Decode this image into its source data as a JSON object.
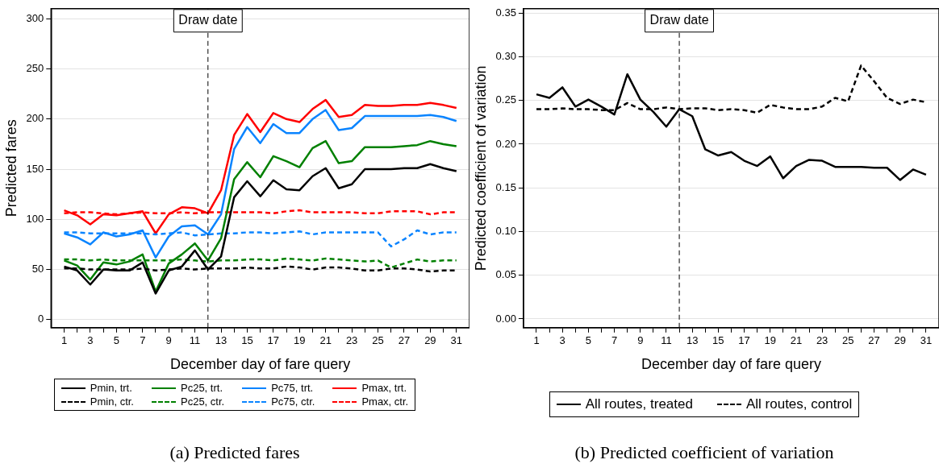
{
  "chart_data": [
    {
      "type": "line",
      "title": "(a) Predicted fares",
      "xlabel": "December day of fare query",
      "ylabel": "Predicted fares",
      "x": [
        1,
        2,
        3,
        4,
        5,
        6,
        7,
        8,
        9,
        10,
        11,
        12,
        13,
        14,
        15,
        16,
        17,
        18,
        19,
        20,
        21,
        22,
        23,
        24,
        25,
        26,
        27,
        28,
        29,
        30,
        31
      ],
      "xlim": [
        0,
        32
      ],
      "xticks": [
        1,
        {
          "value": 2,
          "label": null
        },
        3,
        {
          "value": 4,
          "label": null
        },
        5,
        {
          "value": 6,
          "label": null
        },
        7,
        {
          "value": 8,
          "label": null
        },
        9,
        {
          "value": 10,
          "label": null
        },
        11,
        {
          "value": 12,
          "label": null
        },
        13,
        {
          "value": 14,
          "label": null
        },
        15,
        {
          "value": 16,
          "label": null
        },
        17,
        {
          "value": 18,
          "label": null
        },
        19,
        {
          "value": 20,
          "label": null
        },
        21,
        {
          "value": 22,
          "label": null
        },
        23,
        {
          "value": 24,
          "label": null
        },
        25,
        {
          "value": 26,
          "label": null
        },
        27,
        {
          "value": 28,
          "label": null
        },
        29,
        {
          "value": 30,
          "label": null
        },
        31
      ],
      "ylim": [
        -8,
        310
      ],
      "yticks": [
        0,
        50,
        100,
        150,
        200,
        250,
        300
      ],
      "grid": "y",
      "legend": "bottom",
      "marker": "none",
      "ref_lines": [
        {
          "axis": "x",
          "value": 12,
          "label": "Draw date",
          "color": "#000000",
          "line_style": "dashed"
        }
      ],
      "series": [
        {
          "name": "Pmin, trt.",
          "color": "#000000",
          "line_style": "solid",
          "values": [
            53,
            49,
            35,
            50,
            49,
            49,
            57,
            26,
            49,
            53,
            69,
            50,
            63,
            122,
            138,
            123,
            139,
            130,
            129,
            143,
            151,
            131,
            135,
            150,
            150,
            150,
            151,
            151,
            155,
            151,
            148
          ]
        },
        {
          "name": "Pmin, ctr.",
          "color": "#000000",
          "line_style": "dashed",
          "values": [
            51,
            51,
            50,
            50,
            50,
            50,
            51,
            49,
            50,
            51,
            50,
            51,
            51,
            51,
            52,
            51,
            51,
            53,
            52,
            50,
            52,
            52,
            51,
            49,
            49,
            51,
            51,
            50,
            48,
            49,
            49
          ]
        },
        {
          "name": "Pc25, trt.",
          "color": "#008000",
          "line_style": "solid",
          "values": [
            59,
            54,
            40,
            57,
            55,
            58,
            65,
            28,
            56,
            65,
            76,
            59,
            81,
            140,
            157,
            142,
            163,
            158,
            152,
            171,
            178,
            156,
            158,
            172,
            172,
            172,
            173,
            174,
            178,
            175,
            173
          ]
        },
        {
          "name": "Pc25, ctr.",
          "color": "#008000",
          "line_style": "dashed",
          "values": [
            60,
            60,
            59,
            60,
            59,
            59,
            59,
            59,
            59,
            60,
            59,
            58,
            59,
            59,
            60,
            60,
            59,
            61,
            60,
            59,
            61,
            60,
            59,
            58,
            59,
            52,
            56,
            60,
            58,
            59,
            59
          ]
        },
        {
          "name": "Pc75, trt.",
          "color": "#0a84ff",
          "line_style": "solid",
          "values": [
            86,
            82,
            75,
            87,
            83,
            85,
            89,
            62,
            83,
            93,
            94,
            85,
            105,
            170,
            192,
            176,
            195,
            186,
            186,
            200,
            209,
            189,
            191,
            203,
            203,
            203,
            203,
            203,
            204,
            202,
            198
          ]
        },
        {
          "name": "Pc75, ctr.",
          "color": "#0a84ff",
          "line_style": "dashed",
          "values": [
            87,
            87,
            86,
            86,
            86,
            86,
            86,
            85,
            86,
            87,
            84,
            85,
            86,
            86,
            87,
            87,
            86,
            87,
            88,
            85,
            87,
            87,
            87,
            87,
            87,
            73,
            80,
            89,
            85,
            87,
            87
          ]
        },
        {
          "name": "Pmax, trt.",
          "color": "#ff0000",
          "line_style": "solid",
          "values": [
            109,
            104,
            95,
            105,
            104,
            106,
            108,
            86,
            105,
            112,
            111,
            106,
            129,
            184,
            205,
            187,
            206,
            200,
            197,
            210,
            219,
            202,
            204,
            214,
            213,
            213,
            214,
            214,
            216,
            214,
            211
          ]
        },
        {
          "name": "Pmax, ctr.",
          "color": "#ff0000",
          "line_style": "dashed",
          "values": [
            106,
            107,
            107,
            106,
            105,
            106,
            107,
            106,
            106,
            107,
            106,
            107,
            107,
            107,
            107,
            107,
            106,
            108,
            109,
            107,
            107,
            107,
            107,
            106,
            106,
            108,
            108,
            108,
            105,
            107,
            107
          ]
        }
      ]
    },
    {
      "type": "line",
      "title": "(b) Predicted coefficient of variation",
      "xlabel": "December day of fare query",
      "ylabel": "Predicted coefficient of variation",
      "x": [
        1,
        2,
        3,
        4,
        5,
        6,
        7,
        8,
        9,
        10,
        11,
        12,
        13,
        14,
        15,
        16,
        17,
        18,
        19,
        20,
        21,
        22,
        23,
        24,
        25,
        26,
        27,
        28,
        29,
        30,
        31
      ],
      "xlim": [
        0,
        32
      ],
      "xticks": [
        1,
        {
          "value": 2,
          "label": null
        },
        3,
        {
          "value": 4,
          "label": null
        },
        5,
        {
          "value": 6,
          "label": null
        },
        7,
        {
          "value": 8,
          "label": null
        },
        9,
        {
          "value": 10,
          "label": null
        },
        11,
        {
          "value": 12,
          "label": null
        },
        13,
        {
          "value": 14,
          "label": null
        },
        15,
        {
          "value": 16,
          "label": null
        },
        17,
        {
          "value": 18,
          "label": null
        },
        19,
        {
          "value": 20,
          "label": null
        },
        21,
        {
          "value": 22,
          "label": null
        },
        23,
        {
          "value": 24,
          "label": null
        },
        25,
        {
          "value": 26,
          "label": null
        },
        27,
        {
          "value": 28,
          "label": null
        },
        29,
        {
          "value": 30,
          "label": null
        },
        31
      ],
      "ylim": [
        -0.01,
        0.355
      ],
      "yticks": [
        {
          "value": 0,
          "label": "0.00"
        },
        {
          "value": 0.05,
          "label": "0.05"
        },
        {
          "value": 0.1,
          "label": "0.10"
        },
        {
          "value": 0.15,
          "label": "0.15"
        },
        {
          "value": 0.2,
          "label": "0.20"
        },
        {
          "value": 0.25,
          "label": "0.25"
        },
        {
          "value": 0.3,
          "label": "0.30"
        },
        {
          "value": 0.35,
          "label": "0.35"
        }
      ],
      "grid": "y",
      "legend": "bottom",
      "marker": "none",
      "ref_lines": [
        {
          "axis": "x",
          "value": 12,
          "label": "Draw date",
          "color": "#000000",
          "line_style": "dashed"
        }
      ],
      "series": [
        {
          "name": "All routes, treated",
          "color": "#000000",
          "line_style": "solid",
          "values": [
            0.257,
            0.253,
            0.265,
            0.243,
            0.251,
            0.243,
            0.234,
            0.28,
            0.251,
            0.237,
            0.22,
            0.24,
            0.232,
            0.194,
            0.187,
            0.191,
            0.181,
            0.175,
            0.186,
            0.161,
            0.175,
            0.182,
            0.181,
            0.174,
            0.174,
            0.174,
            0.173,
            0.173,
            0.159,
            0.171,
            0.165
          ]
        },
        {
          "name": "All routes, control",
          "color": "#000000",
          "line_style": "dashed",
          "values": [
            0.24,
            0.24,
            0.241,
            0.24,
            0.24,
            0.239,
            0.239,
            0.247,
            0.24,
            0.24,
            0.242,
            0.24,
            0.241,
            0.241,
            0.239,
            0.24,
            0.239,
            0.236,
            0.245,
            0.242,
            0.24,
            0.24,
            0.243,
            0.253,
            0.249,
            0.29,
            0.272,
            0.253,
            0.246,
            0.251,
            0.248
          ]
        }
      ]
    }
  ]
}
